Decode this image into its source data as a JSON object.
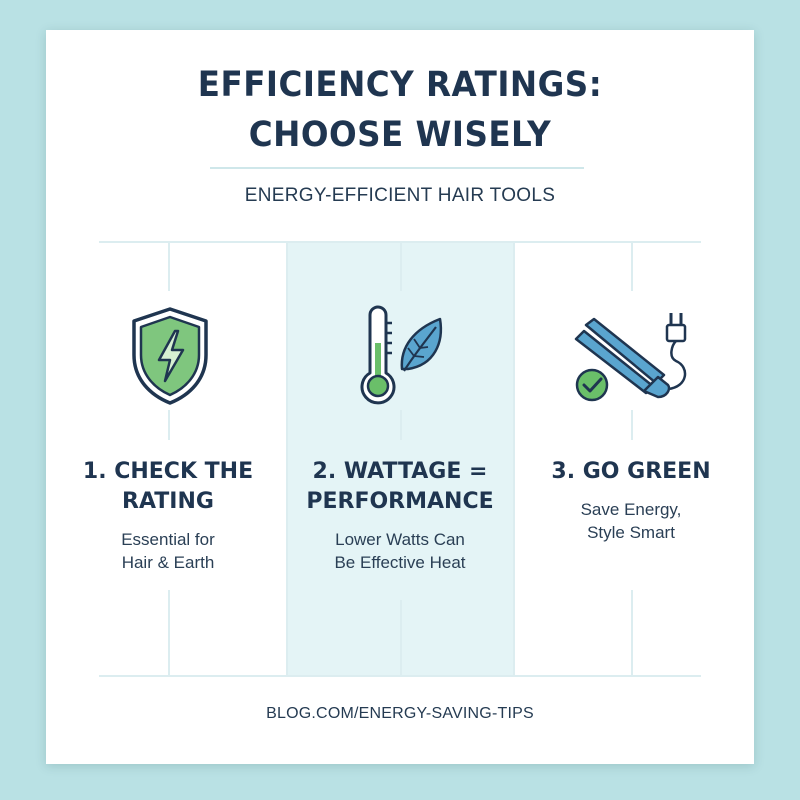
{
  "colors": {
    "background": "#b9e1e4",
    "card": "#ffffff",
    "heading": "#1f3550",
    "accent_green": "#6abf69",
    "accent_blue": "#5aa5cf",
    "highlight_band": "#e4f4f6"
  },
  "header": {
    "title_line1": "EFFICIENCY RATINGS:",
    "title_line2": "CHOOSE WISELY",
    "subtitle": "ENERGY-EFFICIENT HAIR TOOLS"
  },
  "columns": [
    {
      "icon": "shield-lightning-icon",
      "title_line1": "1. CHECK THE",
      "title_line2": "RATING",
      "text_line1": "Essential for",
      "text_line2": "Hair & Earth"
    },
    {
      "icon": "thermometer-leaf-icon",
      "title_line1": "2. WATTAGE =",
      "title_line2": "PERFORMANCE",
      "text_line1": "Lower Watts Can",
      "text_line2": "Be Effective Heat"
    },
    {
      "icon": "flat-iron-plug-check-icon",
      "title_line1": "3. GO GREEN",
      "title_line2": "",
      "text_line1": "Save Energy,",
      "text_line2": "Style Smart"
    }
  ],
  "footer": {
    "url": "BLOG.COM/ENERGY-SAVING-TIPS"
  }
}
